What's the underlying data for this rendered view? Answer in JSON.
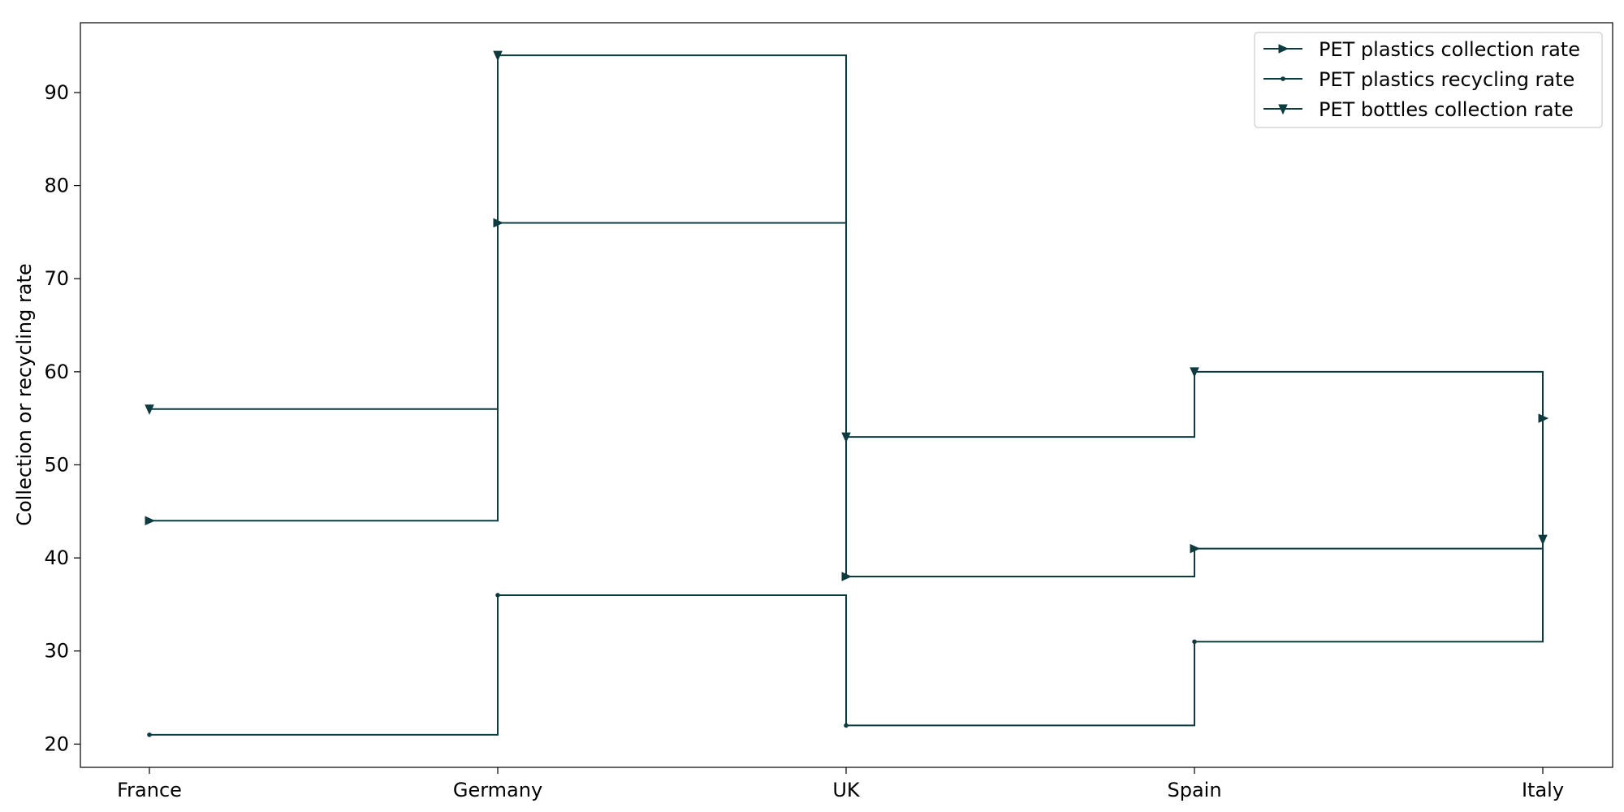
{
  "chart_data": {
    "type": "line",
    "step": "post",
    "title": "",
    "xlabel": "",
    "ylabel": "Collection or recycling rate",
    "categories": [
      "France",
      "Germany",
      "UK",
      "Spain",
      "Italy"
    ],
    "ylim": [
      17.5,
      97.5
    ],
    "yticks": [
      20,
      30,
      40,
      50,
      60,
      70,
      80,
      90
    ],
    "grid": false,
    "legend_position": "top-right",
    "line_color": "#0d3b3f",
    "series": [
      {
        "name": "PET plastics collection rate",
        "marker": "triangle-right",
        "values": [
          44,
          76,
          38,
          41,
          55
        ]
      },
      {
        "name": "PET plastics recycling rate",
        "marker": "point",
        "values": [
          21,
          36,
          22,
          31,
          42
        ]
      },
      {
        "name": "PET bottles collection rate",
        "marker": "triangle-down",
        "values": [
          56,
          94,
          53,
          60,
          42
        ]
      }
    ]
  }
}
